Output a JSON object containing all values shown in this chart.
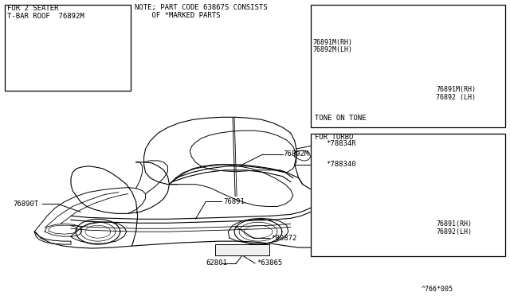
{
  "bg_color": "#ffffff",
  "line_color": "#000000",
  "text_color": "#000000",
  "fig_width": 6.4,
  "fig_height": 3.72,
  "dpi": 100,
  "note_line1": "NOTE; PART CODE 63867S CONSISTS",
  "note_line2": "    OF *MARKED PARTS",
  "box1_line1": "FOR 2 SEATER",
  "box1_line2": "T-BAR ROOF  76892M",
  "tone_label": "TONE ON TONE",
  "tone_parts1a": "76891M(RH)",
  "tone_parts1b": "76892M(LH)",
  "tone_parts2a": "76891M(RH)",
  "tone_parts2b": "76892 (LH)",
  "turbo_label": "FOR TURBO",
  "turbo_parts1": "76891(RH)",
  "turbo_parts2": "76892(LH)",
  "lbl_76892M": "76892M",
  "lbl_76891": "76891",
  "lbl_76890T": "76890T",
  "lbl_78834R": "*78834R",
  "lbl_788340": "*788340",
  "lbl_80872": "*80872",
  "lbl_62801": "62801",
  "lbl_63865": "*63865",
  "footer": "^766*005"
}
